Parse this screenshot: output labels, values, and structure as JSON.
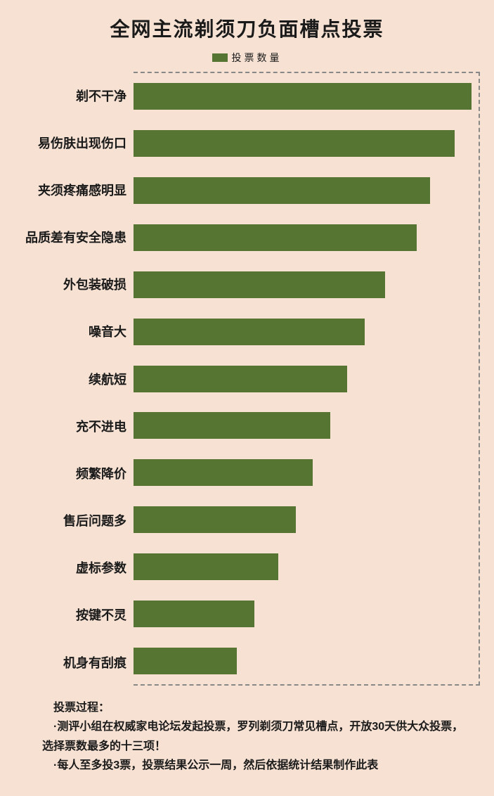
{
  "title": "全网主流剃须刀负面槽点投票",
  "legend_label": "投票数量",
  "background_color": "#f6e1d3",
  "bar_color": "#567532",
  "title_color": "#1a1a1a",
  "title_fontsize": 28,
  "legend_fontsize": 14,
  "label_fontsize": 18,
  "label_color": "#1a1a1a",
  "footer_color": "#1a1a1a",
  "footer_fontsize": 16,
  "border_dash_color": "#888888",
  "max_value": 100,
  "chart_type": "horizontal-bar",
  "categories": [
    {
      "label": "剃不干净",
      "value": 98
    },
    {
      "label": "易伤肤出现伤口",
      "value": 93
    },
    {
      "label": "夹须疼痛感明显",
      "value": 86
    },
    {
      "label": "品质差有安全隐患",
      "value": 82
    },
    {
      "label": "外包装破损",
      "value": 73
    },
    {
      "label": "噪音大",
      "value": 67
    },
    {
      "label": "续航短",
      "value": 62
    },
    {
      "label": "充不进电",
      "value": 57
    },
    {
      "label": "频繁降价",
      "value": 52
    },
    {
      "label": "售后问题多",
      "value": 47
    },
    {
      "label": "虚标参数",
      "value": 42
    },
    {
      "label": "按键不灵",
      "value": 35
    },
    {
      "label": "机身有刮痕",
      "value": 30
    }
  ],
  "footer": {
    "title": "投票过程：",
    "line1": "·测评小组在权威家电论坛发起投票，罗列剃须刀常见槽点，开放30天供大众投票，选择票数最多的十三项！",
    "line2": "·每人至多投3票，投票结果公示一周，然后依据统计结果制作此表"
  }
}
